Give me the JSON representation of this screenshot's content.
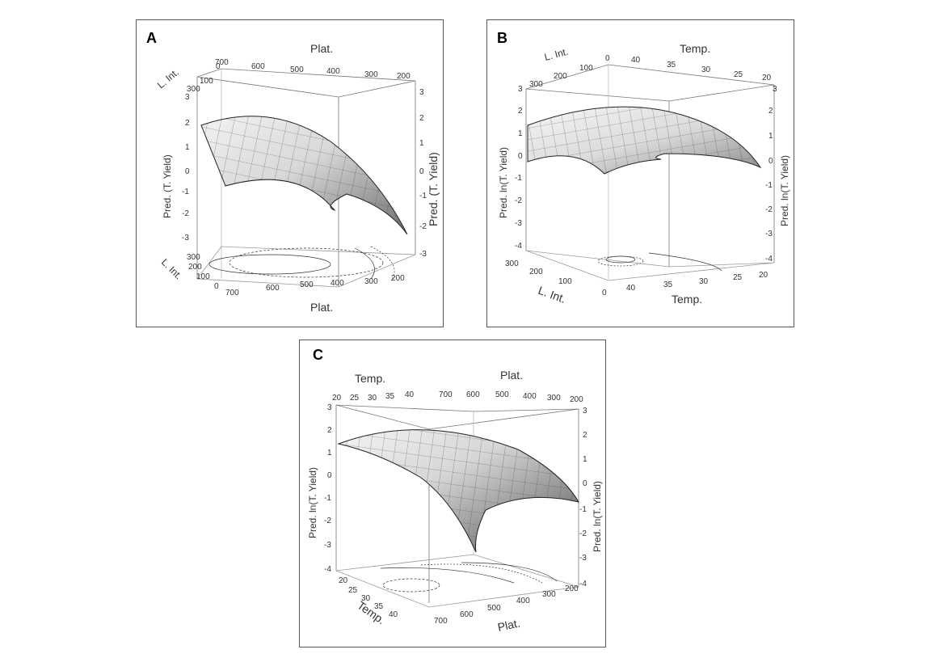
{
  "panels": [
    {
      "letter": "A"
    },
    {
      "letter": "B"
    },
    {
      "letter": "C"
    }
  ],
  "chart_data": [
    {
      "type": "surface",
      "x_label": "Plat.",
      "y_label": "L. Int.",
      "z_label": "Pred. (T. Yield)",
      "x_ticks": [
        "700",
        "600",
        "500",
        "400",
        "300",
        "200"
      ],
      "y_ticks": [
        "0",
        "100",
        "200",
        "300"
      ],
      "z_ticks": [
        "3",
        "2",
        "1",
        "0",
        "-1",
        "-2",
        "-3"
      ],
      "zlim": [
        -3,
        3
      ]
    },
    {
      "type": "surface",
      "x_label": "Temp.",
      "y_label": "L. Int.",
      "z_label": "Pred. ln(T. Yield)",
      "x_ticks": [
        "40",
        "35",
        "30",
        "25",
        "20"
      ],
      "y_ticks": [
        "0",
        "100",
        "200",
        "300"
      ],
      "z_ticks": [
        "3",
        "2",
        "1",
        "0",
        "-1",
        "-2",
        "-3",
        "-4"
      ],
      "zlim": [
        -4,
        3
      ]
    },
    {
      "type": "surface",
      "x_label": "Plat.",
      "y_label": "Temp.",
      "z_label": "Pred. ln(T. Yield)",
      "x_ticks": [
        "700",
        "600",
        "500",
        "400",
        "300",
        "200"
      ],
      "y_ticks": [
        "20",
        "25",
        "30",
        "35",
        "40"
      ],
      "z_ticks": [
        "3",
        "2",
        "1",
        "0",
        "-1",
        "-2",
        "-3",
        "-4"
      ],
      "zlim": [
        -4,
        3
      ]
    }
  ]
}
